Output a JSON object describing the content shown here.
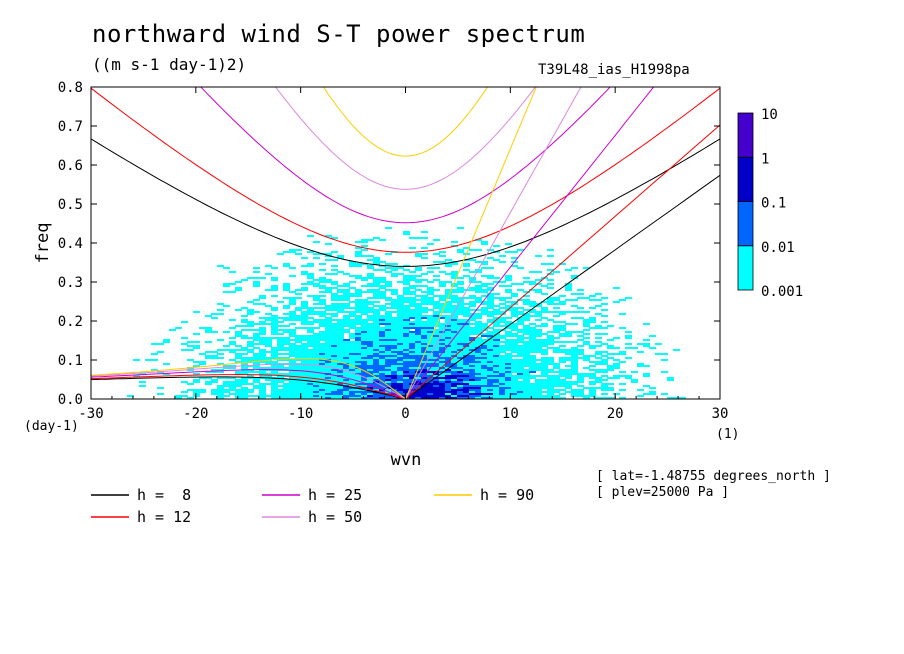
{
  "title": "northward wind S-T power spectrum",
  "units": "((m s-1 day-1)2)",
  "run_label": "T39L48_ias_H1998pa",
  "annotations": [
    "[ lat=-1.48755 degrees_north ]",
    "[ plev=25000 Pa ]"
  ],
  "colors": {
    "shade1": "#00ffff",
    "shade2": "#0066ff",
    "shade3": "#0000c8",
    "shade4": "#4400cc",
    "h8": "#000000",
    "h12": "#ff0000",
    "h25": "#cc00cc",
    "h50": "#dd88dd",
    "h90": "#ffcc00"
  },
  "chart_data": {
    "type": "heatmap",
    "title": "northward wind S-T power spectrum",
    "xlabel": "wvn",
    "ylabel": "freq",
    "x_unit_label": "(1)",
    "y_unit_label": "(day-1)",
    "xlim": [
      -30,
      30
    ],
    "ylim": [
      0,
      0.8
    ],
    "xticks": [
      "-30",
      "-20",
      "-10",
      "0",
      "10",
      "20",
      "30"
    ],
    "yticks": [
      "0.0",
      "0.1",
      "0.2",
      "0.3",
      "0.4",
      "0.5",
      "0.6",
      "0.7",
      "0.8"
    ],
    "colorbar": {
      "levels": [
        "0.001",
        "0.01",
        "0.1",
        "1",
        "10"
      ],
      "colors": [
        "#00ffff",
        "#0066ff",
        "#0000c8",
        "#4400cc"
      ]
    },
    "power_regions": [
      {
        "level": "0.001-0.01",
        "note": "broad field, strongest near wvn -20..20 and freq below 0.45"
      },
      {
        "level": "0.01-0.1",
        "note": "wvn -15..12, freq below 0.3"
      },
      {
        "level": "0.1-1",
        "note": "wvn -8..12, freq below 0.1"
      }
    ],
    "series": [
      {
        "name": "h =  8",
        "equivalent_depth": 8
      },
      {
        "name": "h = 12",
        "equivalent_depth": 12
      },
      {
        "name": "h = 25",
        "equivalent_depth": 25
      },
      {
        "name": "h = 50",
        "equivalent_depth": 50
      },
      {
        "name": "h = 90",
        "equivalent_depth": 90
      }
    ]
  }
}
